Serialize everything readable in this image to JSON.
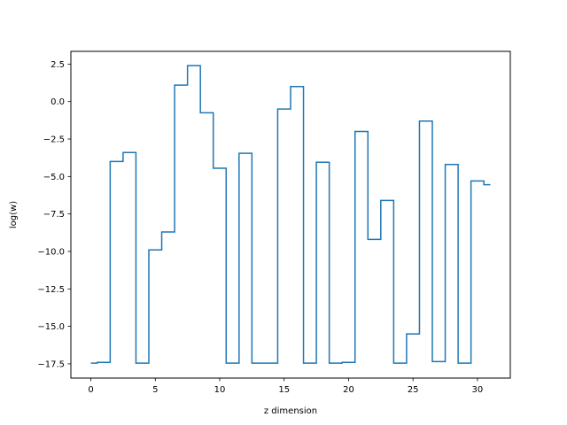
{
  "chart_data": {
    "type": "line",
    "drawstyle": "steps-mid",
    "title": "",
    "xlabel": "z dimension",
    "ylabel": "log(w)",
    "xlim": [
      -1.55,
      32.55
    ],
    "ylim": [
      -18.45,
      3.35
    ],
    "xticks": [
      0,
      5,
      10,
      15,
      20,
      25,
      30
    ],
    "xtick_labels": [
      "0",
      "5",
      "10",
      "15",
      "20",
      "25",
      "30"
    ],
    "yticks": [
      2.5,
      0.0,
      -2.5,
      -5.0,
      -7.5,
      -10.0,
      -12.5,
      -15.0,
      -17.5
    ],
    "ytick_labels": [
      "2.5",
      "0.0",
      "−2.5",
      "−5.0",
      "−7.5",
      "−10.0",
      "−12.5",
      "−15.0",
      "−17.5"
    ],
    "grid": false,
    "series": [
      {
        "color": "#1f77b4",
        "x": [
          0,
          1,
          2,
          3,
          4,
          5,
          6,
          7,
          8,
          9,
          10,
          11,
          12,
          13,
          14,
          15,
          16,
          17,
          18,
          19,
          20,
          21,
          22,
          23,
          24,
          25,
          26,
          27,
          28,
          29,
          30,
          31
        ],
        "y": [
          -17.45,
          -17.4,
          -4.0,
          -3.4,
          -17.45,
          -9.9,
          -8.7,
          1.1,
          2.4,
          -0.75,
          -4.45,
          -17.45,
          -3.45,
          -17.45,
          -17.45,
          -0.5,
          1.0,
          -17.45,
          -4.05,
          -17.45,
          -17.4,
          -2.0,
          -9.2,
          -6.6,
          -17.45,
          -15.5,
          -1.3,
          -17.35,
          -4.2,
          -17.45,
          -5.3,
          -5.55
        ]
      }
    ]
  }
}
